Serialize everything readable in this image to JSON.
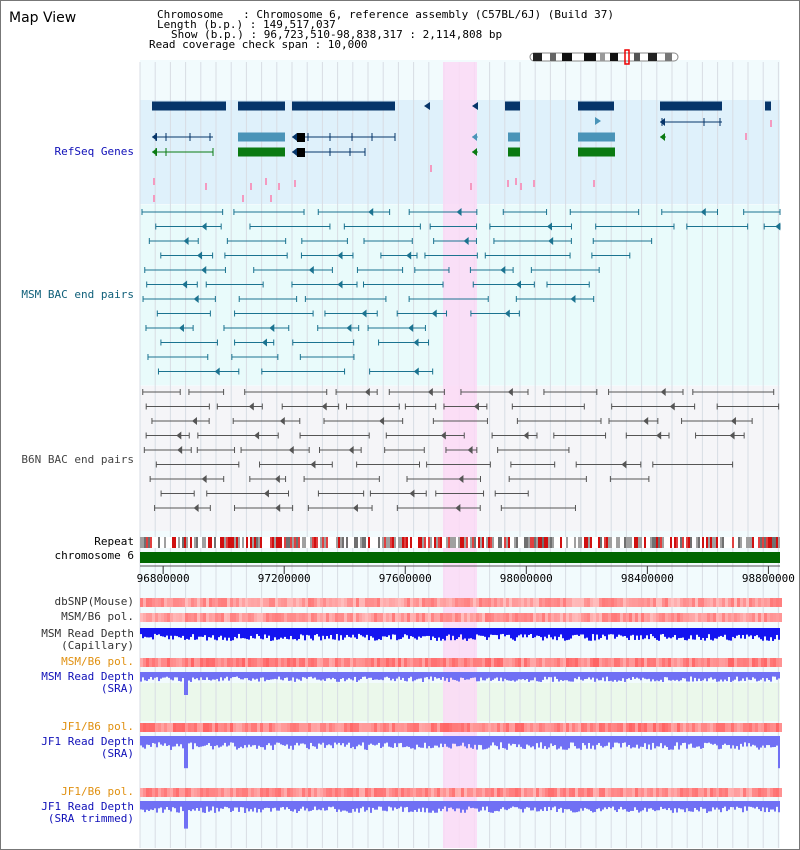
{
  "title": "Map View",
  "header": {
    "chromosome": "Chromosome   : Chromosome 6, reference assembly (C57BL/6J) (Build 37)",
    "length": "Length (b.p.) : 149,517,037",
    "show": "Show (b.p.) : 96,723,510-98,838,317 : 2,114,808 bp",
    "span": "Read coverage check span : 10,000"
  },
  "tracks": {
    "refseq": "RefSeq Genes",
    "msm_bac": "MSM BAC end pairs",
    "b6n_bac": "B6N BAC end pairs",
    "repeat": "Repeat",
    "chromosome": "chromosome 6",
    "dbsnp": "dbSNP(Mouse)",
    "msm_b6_pol": "MSM/B6 pol.",
    "msm_depth_cap": "MSM Read Depth\n(Capillary)",
    "msm_b6_pol2": "MSM/B6 pol.",
    "msm_depth_sra": "MSM Read Depth\n(SRA)",
    "jf1_b6_pol": "JF1/B6 pol.",
    "jf1_depth_sra": "JF1 Read Depth\n(SRA)",
    "jf1_b6_pol2": "JF1/B6 pol.",
    "jf1_depth_trim": "JF1 Read Depth\n(SRA trimmed)"
  },
  "axis": {
    "ticks": [
      "96800000",
      "97200000",
      "97600000",
      "98000000",
      "98400000",
      "98800000"
    ]
  },
  "colors": {
    "refseq_bg": "#dff1fb",
    "msm_bg": "#e9fbfb",
    "highlight": "#fbd9f6",
    "gene_dark": "#06356a",
    "gene_mid": "#4a94b8",
    "gene_green": "#0a7a12",
    "bac_teal": "#1b7390",
    "bac_gray": "#555555",
    "chrom_green": "#006600",
    "depth_blue": "#1414f0",
    "depth_light": "#7070f4",
    "label_blue": "#1010b8",
    "label_orange": "#e09010"
  }
}
